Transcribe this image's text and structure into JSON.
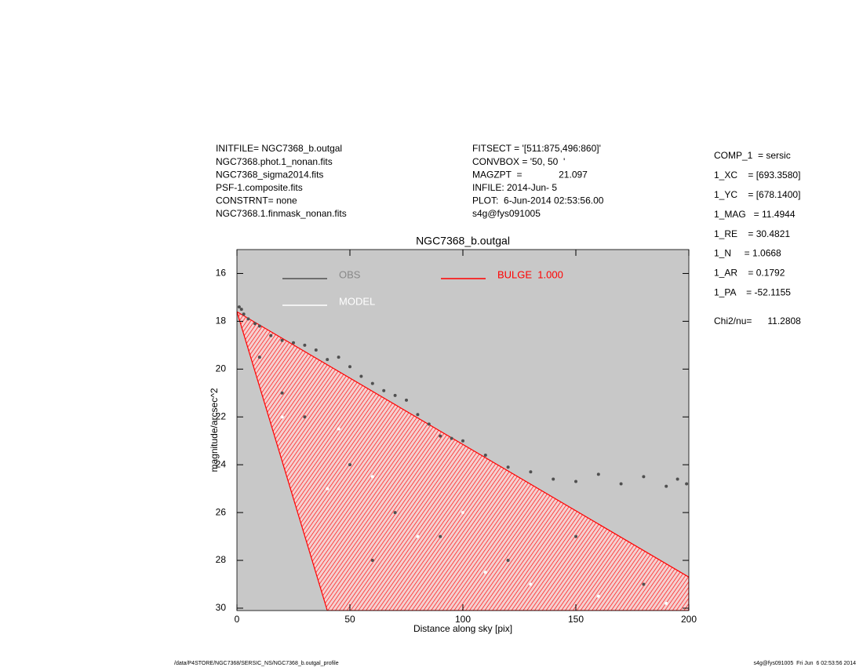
{
  "header": {
    "left": [
      "INITFILE= NGC7368_b.outgal",
      "NGC7368.phot.1_nonan.fits",
      "NGC7368_sigma2014.fits",
      "PSF-1.composite.fits",
      "CONSTRNT= none",
      "NGC7368.1.finmask_nonan.fits"
    ],
    "middle": [
      "FITSECT = '[511:875,496:860]'",
      "CONVBOX = '50, 50  '",
      "MAGZPT  =              21.097",
      "INFILE: 2014-Jun- 5",
      "PLOT:  6-Jun-2014 02:53:56.00",
      "s4g@fys091005"
    ],
    "right": [
      "COMP_1  = sersic",
      "1_XC    = [693.3580]",
      "1_YC    = [678.1400]",
      "1_MAG   = 11.4944",
      "1_RE    = 30.4821",
      "1_N     = 1.0668",
      "1_AR    = 0.1792",
      "1_PA    = -52.1155"
    ],
    "chi2": "Chi2/nu=      11.2808"
  },
  "footer": {
    "left": "/data/P4STORE/NGC7368/SERSIC_NS/NGC7368_b.outgal_profile",
    "right": "s4g@fys091005  Fri Jun  6 02:53:56 2014"
  },
  "chart_data": {
    "type": "scatter",
    "title": "NGC7368_b.outgal",
    "x_label": "Distance along sky [pix]",
    "y_label": "magnitude/arcsec^2",
    "xlim": [
      0,
      200
    ],
    "ylim": [
      30.1,
      15
    ],
    "xticks": [
      0,
      50,
      100,
      150,
      200
    ],
    "yticks": [
      16,
      18,
      20,
      22,
      24,
      26,
      28,
      30
    ],
    "background": "#c8c8c8",
    "series": [
      {
        "name": "OBS",
        "color": "#505050",
        "mark": "points",
        "x": [
          1,
          2,
          3,
          5,
          8,
          10,
          15,
          20,
          25,
          30,
          35,
          40,
          45,
          50,
          55,
          60,
          65,
          70,
          75,
          80,
          85,
          90,
          95,
          100,
          110,
          120,
          130,
          140,
          150,
          160,
          170,
          180,
          190,
          195,
          199,
          30,
          50,
          70,
          90,
          120,
          150,
          180,
          10,
          20,
          60
        ],
        "values": [
          17.4,
          17.5,
          17.7,
          17.9,
          18.1,
          18.2,
          18.6,
          18.8,
          18.9,
          19.0,
          19.2,
          19.6,
          19.5,
          19.9,
          20.3,
          20.6,
          20.9,
          21.1,
          21.3,
          21.9,
          22.3,
          22.8,
          22.9,
          23.0,
          23.6,
          24.1,
          24.3,
          24.6,
          24.7,
          24.4,
          24.8,
          24.5,
          24.9,
          24.6,
          24.8,
          22.0,
          24.0,
          26.0,
          27.0,
          28.0,
          27.0,
          29.0,
          19.5,
          21.0,
          28.0
        ]
      },
      {
        "name": "MODEL",
        "color": "#ffffff",
        "mark": "points",
        "x": [
          20,
          40,
          60,
          80,
          100,
          130,
          160,
          190,
          45,
          110
        ],
        "values": [
          22.0,
          25.0,
          24.5,
          27.0,
          26.0,
          29.0,
          29.5,
          29.8,
          22.5,
          28.5
        ]
      },
      {
        "name": "BULGE  1.000",
        "color": "#ff0000",
        "mark": "area",
        "x": [
          0,
          200,
          200,
          40
        ],
        "values": [
          17.6,
          28.7,
          30.1,
          30.1
        ]
      }
    ]
  }
}
